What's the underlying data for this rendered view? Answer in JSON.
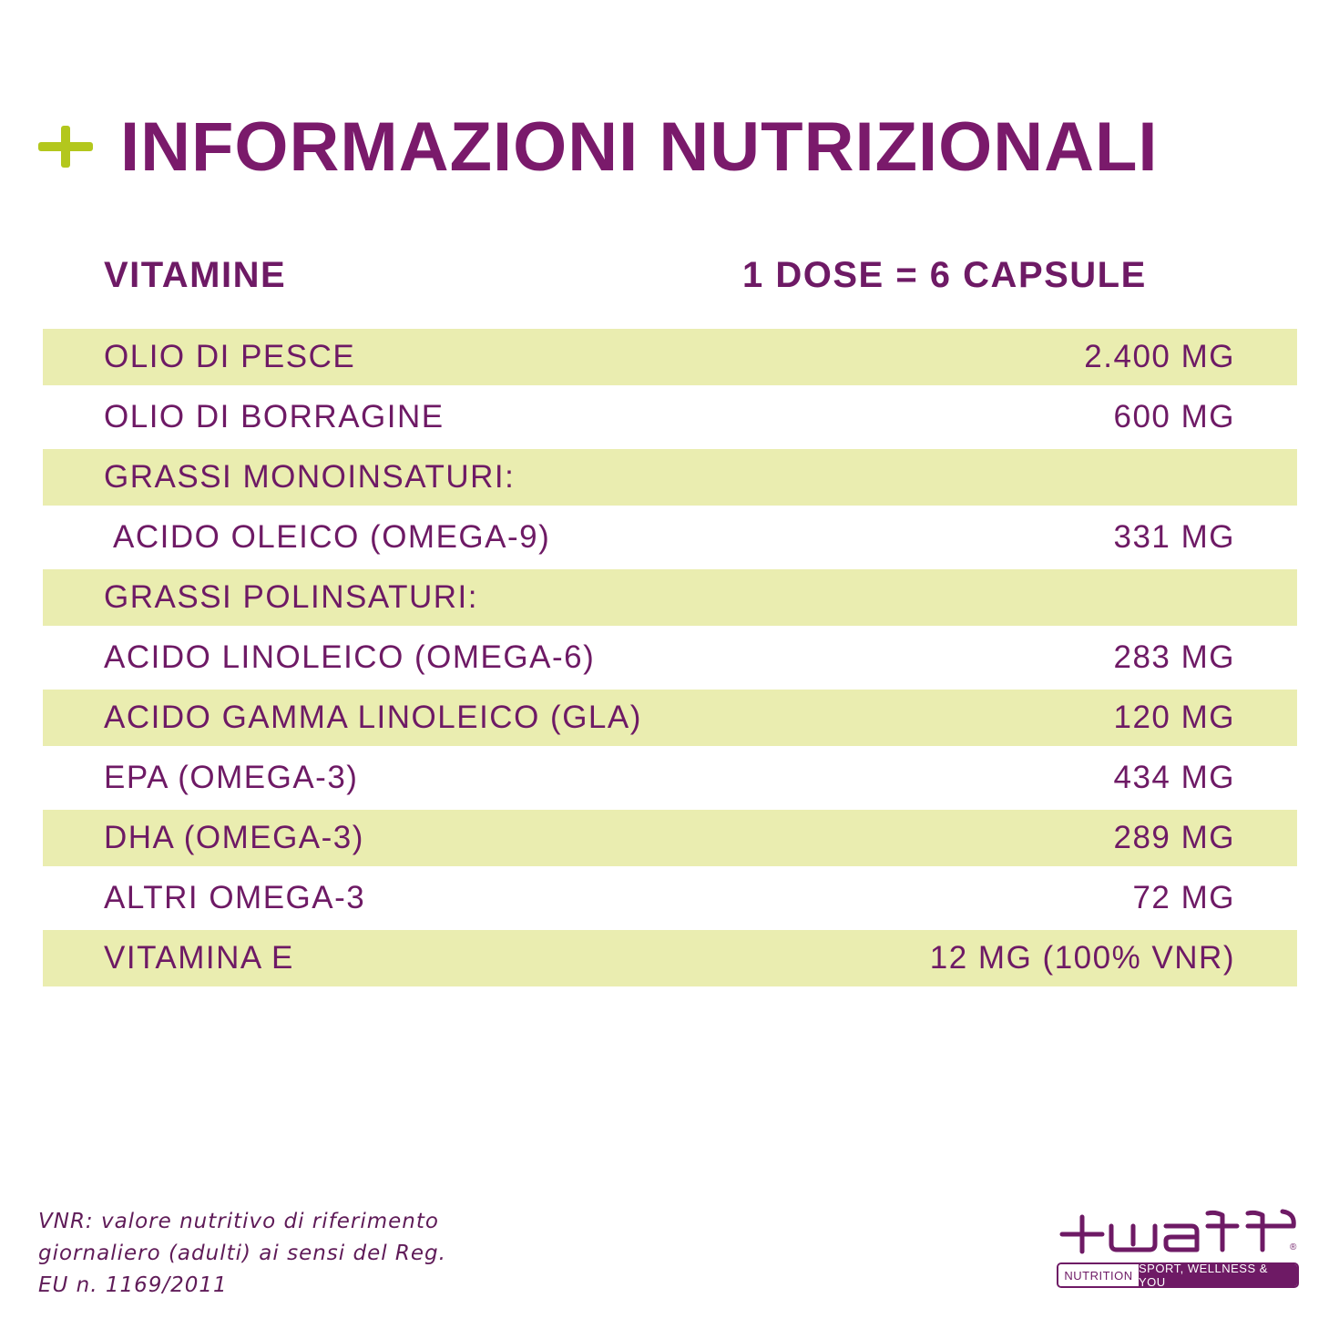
{
  "header": {
    "title": "INFORMAZIONI NUTRIZIONALI"
  },
  "columns": {
    "left": "VITAMINE",
    "right": "1 DOSE = 6 CAPSULE"
  },
  "rows": [
    {
      "label": "OLIO DI PESCE",
      "value": "2.400 MG"
    },
    {
      "label": "OLIO DI BORRAGINE",
      "value": "600 MG"
    },
    {
      "label": "GRASSI MONOINSATURI:",
      "value": ""
    },
    {
      "label": "ACIDO OLEICO (OMEGA-9)",
      "value": "331 MG"
    },
    {
      "label": "GRASSI POLINSATURI:",
      "value": ""
    },
    {
      "label": "ACIDO LINOLEICO (OMEGA-6)",
      "value": "283 MG"
    },
    {
      "label": "ACIDO GAMMA LINOLEICO (GLA)",
      "value": "120 MG"
    },
    {
      "label": "EPA (OMEGA-3)",
      "value": "434 MG"
    },
    {
      "label": "DHA (OMEGA-3)",
      "value": "289 MG"
    },
    {
      "label": "ALTRI OMEGA-3",
      "value": "72 MG"
    },
    {
      "label": "VITAMINA E",
      "value": "12 MG (100% VNR)"
    }
  ],
  "footnote": {
    "line1": "VNR: valore nutritivo di riferimento",
    "line2": "giornaliero (adulti) ai sensi del Reg.",
    "line3": "EU n. 1169/2011"
  },
  "logo": {
    "brand": "+watt",
    "tag_left": "NUTRITION",
    "tag_right": "SPORT, WELLNESS & YOU"
  },
  "colors": {
    "purple": "#7a1a6b",
    "lime": "#b3c71d",
    "row_shade": "#eaedb0"
  }
}
